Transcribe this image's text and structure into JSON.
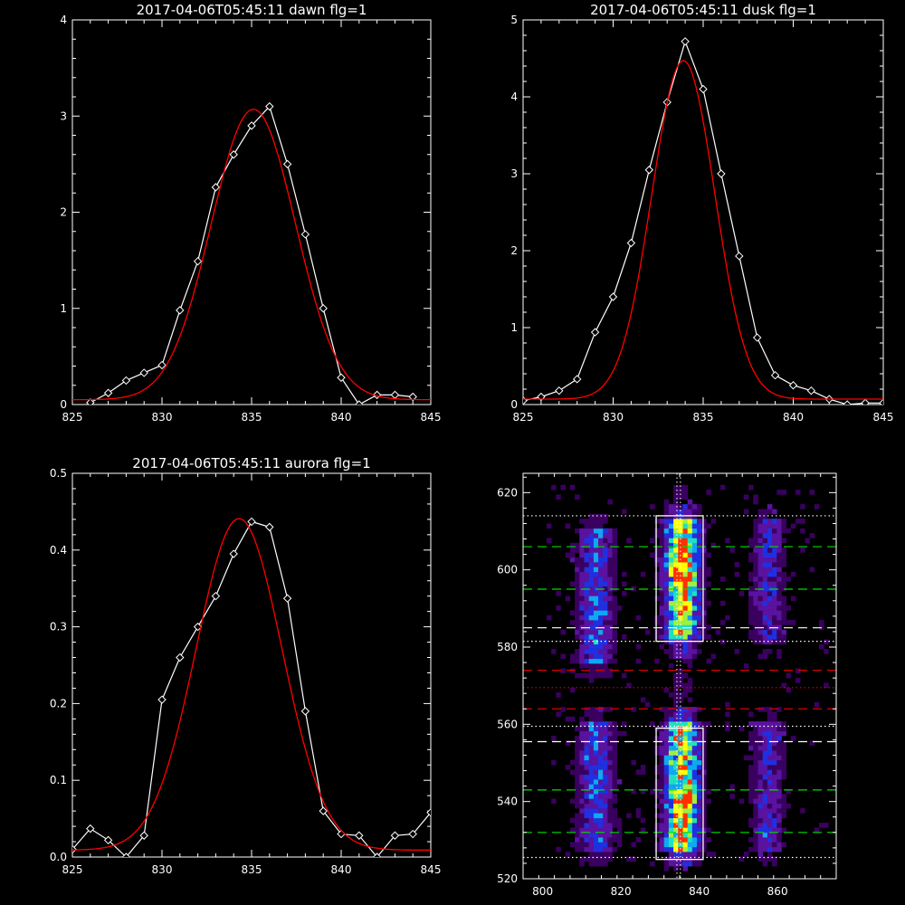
{
  "chart_data": [
    {
      "type": "line",
      "title": "2017-04-06T05:45:11 dawn flg=1",
      "xlim": [
        825,
        845
      ],
      "ylim": [
        0,
        4
      ],
      "xticks": [
        825,
        830,
        835,
        840,
        845
      ],
      "yticks": [
        0,
        1,
        2,
        3,
        4
      ],
      "series": [
        {
          "color": "#ffffff",
          "marker": "diamond",
          "x": [
            826,
            827,
            828,
            829,
            830,
            831,
            832,
            833,
            834,
            835,
            836,
            837,
            838,
            839,
            840,
            841,
            842,
            843,
            844
          ],
          "y": [
            0.02,
            0.12,
            0.25,
            0.33,
            0.41,
            0.98,
            1.49,
            2.26,
            2.6,
            2.9,
            3.1,
            2.5,
            1.77,
            1.0,
            0.28,
            0.0,
            0.1,
            0.1,
            0.08
          ]
        },
        {
          "color": "#ff0000",
          "marker": "none",
          "fit": "gaussian",
          "amplitude": 3.02,
          "center": 835.1,
          "sigma": 2.35,
          "offset": 0.05
        }
      ]
    },
    {
      "type": "line",
      "title": "2017-04-06T05:45:11 dusk flg=1",
      "xlim": [
        825,
        845
      ],
      "ylim": [
        0,
        5
      ],
      "xticks": [
        825,
        830,
        835,
        840,
        845
      ],
      "yticks": [
        0,
        1,
        2,
        3,
        4,
        5
      ],
      "series": [
        {
          "color": "#ffffff",
          "marker": "diamond",
          "x": [
            825,
            826,
            827,
            828,
            829,
            830,
            831,
            832,
            833,
            834,
            835,
            836,
            837,
            838,
            839,
            840,
            841,
            842,
            843,
            844,
            845
          ],
          "y": [
            0.05,
            0.1,
            0.18,
            0.33,
            0.94,
            1.4,
            2.1,
            3.05,
            3.93,
            4.72,
            4.1,
            3.0,
            1.93,
            0.87,
            0.38,
            0.25,
            0.18,
            0.07,
            0.0,
            0.02,
            0.02
          ]
        },
        {
          "color": "#ff0000",
          "marker": "none",
          "fit": "gaussian",
          "amplitude": 4.4,
          "center": 833.9,
          "sigma": 1.75,
          "offset": 0.07
        }
      ]
    },
    {
      "type": "line",
      "title": "2017-04-06T05:45:11 aurora flg=1",
      "xlim": [
        825,
        845
      ],
      "ylim": [
        0,
        0.5
      ],
      "xticks": [
        825,
        830,
        835,
        840,
        845
      ],
      "yticks": [
        0.0,
        0.1,
        0.2,
        0.3,
        0.4,
        0.5
      ],
      "yticklabels": [
        "0.0",
        "0.1",
        "0.2",
        "0.3",
        "0.4",
        "0.5"
      ],
      "series": [
        {
          "color": "#ffffff",
          "marker": "diamond",
          "x": [
            825,
            826,
            827,
            828,
            829,
            830,
            831,
            832,
            833,
            834,
            835,
            836,
            837,
            838,
            839,
            840,
            841,
            842,
            843,
            844,
            845
          ],
          "y": [
            0.01,
            0.037,
            0.022,
            0.0,
            0.028,
            0.205,
            0.26,
            0.3,
            0.34,
            0.395,
            0.437,
            0.43,
            0.337,
            0.19,
            0.06,
            0.03,
            0.028,
            0.0,
            0.028,
            0.03,
            0.058
          ]
        },
        {
          "color": "#ff0000",
          "marker": "none",
          "fit": "gaussian",
          "amplitude": 0.432,
          "center": 834.3,
          "sigma": 2.4,
          "offset": 0.009
        }
      ]
    },
    {
      "type": "heatmap",
      "xlim": [
        795,
        875
      ],
      "ylim": [
        520,
        625
      ],
      "xticks": [
        800,
        820,
        840,
        860
      ],
      "yticks": [
        520,
        540,
        560,
        580,
        600,
        620
      ],
      "colormap": [
        "#000000",
        "#3a0060",
        "#5a12a0",
        "#2030e0",
        "#10a8f0",
        "#20e0c0",
        "#a0f040",
        "#ffff00",
        "#ff3000"
      ],
      "emission_bands": [
        {
          "x_center": 813,
          "x_width": 3.2,
          "y_ranges": [
            [
              575,
              610
            ],
            [
              527,
              560
            ]
          ],
          "strength": 0.45
        },
        {
          "x_center": 835,
          "x_width": 3.0,
          "y_ranges": [
            [
              581,
              612
            ],
            [
              527,
              560
            ]
          ],
          "strength": 1.0
        },
        {
          "x_center": 857,
          "x_width": 2.8,
          "y_ranges": [
            [
              580,
              612
            ],
            [
              527,
              560
            ]
          ],
          "strength": 0.35
        }
      ],
      "hot_spots": [
        {
          "x": 835,
          "y": 600,
          "strength": 1.0
        },
        {
          "x": 836,
          "y": 537,
          "strength": 0.95
        }
      ],
      "boxes": [
        {
          "x": [
            829,
            841
          ],
          "y": [
            581.5,
            614
          ],
          "color": "#ffffff"
        },
        {
          "x": [
            829,
            841
          ],
          "y": [
            525,
            559
          ],
          "color": "#ffffff"
        }
      ],
      "vlines": [
        {
          "x": 834.3,
          "style": "dotted",
          "color": "#ffffff"
        },
        {
          "x": 835.2,
          "style": "dotted",
          "color": "#ffffff"
        }
      ],
      "hlines": [
        {
          "y": 614,
          "style": "dotted",
          "color": "#ffffff"
        },
        {
          "y": 606,
          "style": "dashed",
          "color": "#00dd00"
        },
        {
          "y": 595,
          "style": "dashed",
          "color": "#00dd00"
        },
        {
          "y": 585,
          "style": "dashed",
          "color": "#ffffff"
        },
        {
          "y": 581.5,
          "style": "dotted",
          "color": "#ffffff"
        },
        {
          "y": 574,
          "style": "dashed",
          "color": "#dd0000"
        },
        {
          "y": 569.5,
          "style": "dotted",
          "color": "#dd0000"
        },
        {
          "y": 564,
          "style": "dashed",
          "color": "#dd0000"
        },
        {
          "y": 559.5,
          "style": "dotted",
          "color": "#ffffff"
        },
        {
          "y": 555.5,
          "style": "dashed",
          "color": "#ffffff"
        },
        {
          "y": 543,
          "style": "dashed",
          "color": "#00dd00"
        },
        {
          "y": 532,
          "style": "dashed",
          "color": "#00dd00"
        },
        {
          "y": 525.5,
          "style": "dotted",
          "color": "#ffffff"
        }
      ]
    }
  ]
}
